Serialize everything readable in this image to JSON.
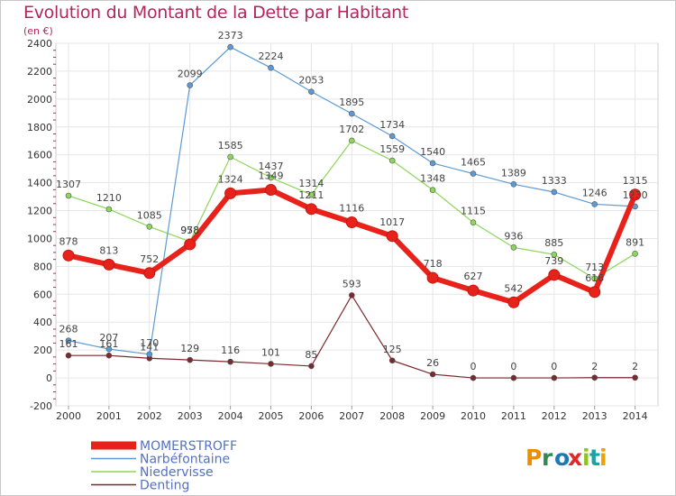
{
  "title": "Evolution du Montant de la Dette par Habitant",
  "subtitle": "(en €)",
  "logo": {
    "text": "Proxiti",
    "colors": [
      "#f08c00",
      "#2e8b57",
      "#1f77b4",
      "#e3262a",
      "#8fc31f",
      "#1aa3a3",
      "#f0a000"
    ]
  },
  "chart_data": {
    "type": "line",
    "title": "Evolution du Montant de la Dette par Habitant",
    "ylabel": "(en €)",
    "xlabel": "",
    "x": [
      "2000",
      "2001",
      "2002",
      "2003",
      "2004",
      "2005",
      "2006",
      "2007",
      "2008",
      "2009",
      "2010",
      "2011",
      "2012",
      "2013",
      "2014"
    ],
    "ylim": [
      -200,
      2400
    ],
    "yticks": [
      -200,
      0,
      200,
      400,
      600,
      800,
      1000,
      1200,
      1400,
      1600,
      1800,
      2000,
      2200,
      2400
    ],
    "grid": true,
    "legend_position": "bottom-left",
    "series": [
      {
        "name": "Denting",
        "color": "#7a2a2e",
        "width": 1.2,
        "marker": 3,
        "values": [
          161,
          161,
          141,
          129,
          116,
          101,
          85,
          593,
          125,
          26,
          0,
          0,
          0,
          2,
          2
        ],
        "labels": [
          "161",
          "161",
          "141",
          "129",
          "116",
          "101",
          "85",
          "593",
          "125",
          "26",
          "0",
          "0",
          "0",
          "2",
          "2"
        ]
      },
      {
        "name": "Niedervisse",
        "color": "#8dd65a",
        "width": 1.2,
        "marker": 3,
        "values": [
          1307,
          1210,
          1085,
          978,
          1585,
          1437,
          1314,
          1702,
          1559,
          1348,
          1115,
          936,
          885,
          713,
          891
        ],
        "labels": [
          "1307",
          "1210",
          "1085",
          "978",
          "1585",
          "1437",
          "1314",
          "1702",
          "1559",
          "1348",
          "1115",
          "936",
          "885",
          "713",
          "891"
        ]
      },
      {
        "name": "Narbéfontaine",
        "color": "#5b9bd5",
        "width": 1.2,
        "marker": 3,
        "values": [
          268,
          207,
          170,
          2099,
          2373,
          2224,
          2053,
          1895,
          1734,
          1540,
          1465,
          1389,
          1333,
          1246,
          1230
        ],
        "labels": [
          "268",
          "207",
          "170",
          "2099",
          "2373",
          "2224",
          "2053",
          "1895",
          "1734",
          "1540",
          "1465",
          "1389",
          "1333",
          "1246",
          "1230"
        ]
      },
      {
        "name": "MOMERSTROFF",
        "color": "#e8221a",
        "width": 6,
        "marker": 6,
        "values": [
          878,
          813,
          752,
          958,
          1324,
          1349,
          1211,
          1116,
          1017,
          718,
          627,
          542,
          739,
          616,
          1315
        ],
        "labels": [
          "878",
          "813",
          "752",
          "958",
          "1324",
          "1349",
          "1211",
          "1116",
          "1017",
          "718",
          "627",
          "542",
          "739",
          "616",
          "1315"
        ]
      }
    ],
    "legend": [
      {
        "name": "MOMERSTROFF",
        "color": "#e8221a",
        "text_color": "#5470c6",
        "bold": true
      },
      {
        "name": "Narbéfontaine",
        "color": "#5b9bd5",
        "text_color": "#5470c6",
        "bold": false
      },
      {
        "name": "Niedervisse",
        "color": "#8dd65a",
        "text_color": "#5470c6",
        "bold": false
      },
      {
        "name": "Denting",
        "color": "#7a2a2e",
        "text_color": "#5470c6",
        "bold": false
      }
    ]
  }
}
